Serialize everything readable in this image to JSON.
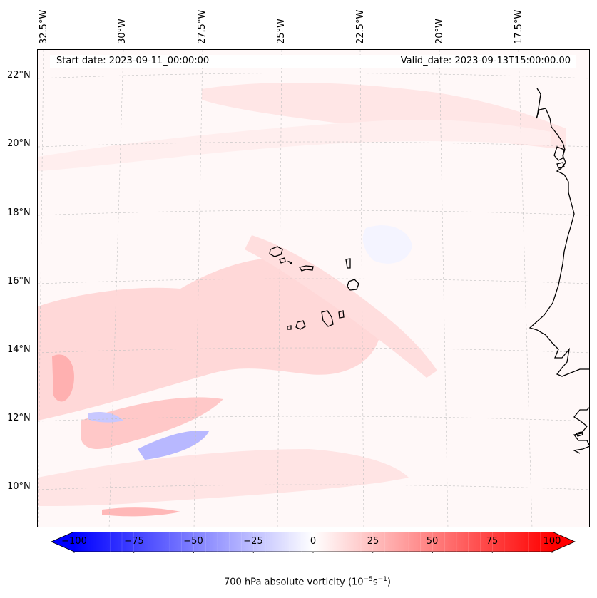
{
  "header": {
    "start_date": "Start date: 2023-09-11_00:00:00",
    "valid_date": "Valid_date: 2023-09-13T15:00:00.00"
  },
  "lat_labels": [
    "22°N",
    "20°N",
    "18°N",
    "16°N",
    "14°N",
    "12°N",
    "10°N"
  ],
  "lon_labels": [
    "32.5°W",
    "30°W",
    "27.5°W",
    "25°W",
    "22.5°W",
    "20°W",
    "17.5°W"
  ],
  "colorbar": {
    "min": -100,
    "max": 100,
    "tick_labels": [
      "−100",
      "−75",
      "−50",
      "−25",
      "0",
      "25",
      "50",
      "75",
      "100"
    ],
    "label_text": "700 hPa absolute vorticity (10",
    "label_exp1": "−5",
    "label_mid": "s",
    "label_exp2": "−1",
    "label_end": ")",
    "neg_color": "#0000ff",
    "zero_color": "#ffffff",
    "pos_color": "#ff0000"
  },
  "colors": {
    "coastline": "#000000",
    "gridline": "#c0c0c0",
    "background_field": "#fff8f8"
  }
}
